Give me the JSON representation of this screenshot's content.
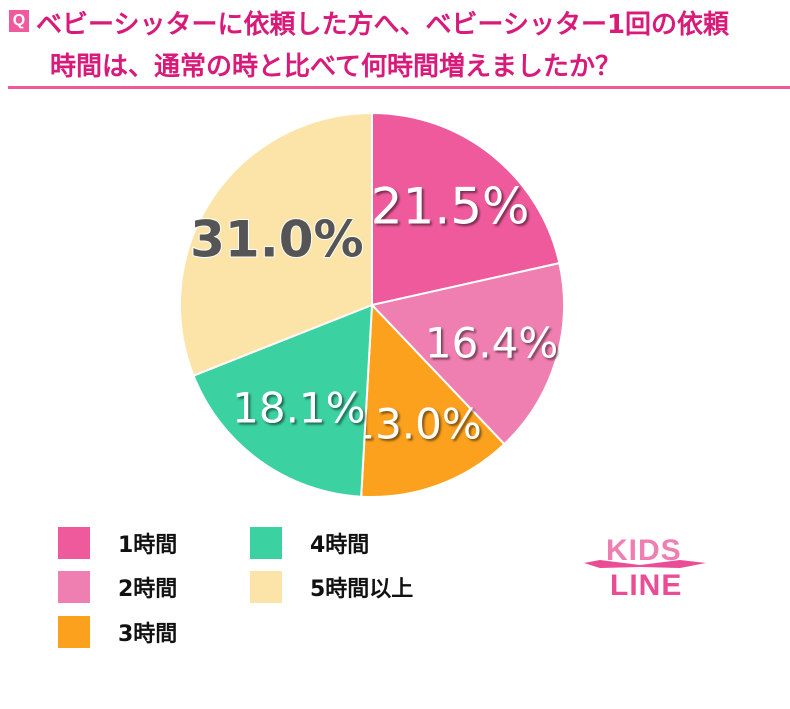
{
  "header": {
    "badge": "Q",
    "line1": "ベビーシッターに依頼した方へ、ベビーシッター1回の依頼",
    "line2": "時間は、通常の時と比べて何時間増えましたか？"
  },
  "chart_data": {
    "type": "pie",
    "title": "ベビーシッターに依頼した方へ、ベビーシッター1回の依頼時間は、通常の時と比べて何時間増えましたか？",
    "categories": [
      "1時間",
      "2時間",
      "3時間",
      "4時間",
      "5時間以上"
    ],
    "values": [
      21.5,
      16.4,
      13.0,
      18.1,
      31.0
    ],
    "labels": [
      "21.5%",
      "16.4%",
      "13.0%",
      "18.1%",
      "31.0%"
    ],
    "colors": [
      "#ef5a9c",
      "#f07fb1",
      "#fba11e",
      "#3bd1a0",
      "#fce3a7"
    ],
    "legend": "bottom"
  },
  "logo": {
    "text": "KIDS LINE"
  }
}
